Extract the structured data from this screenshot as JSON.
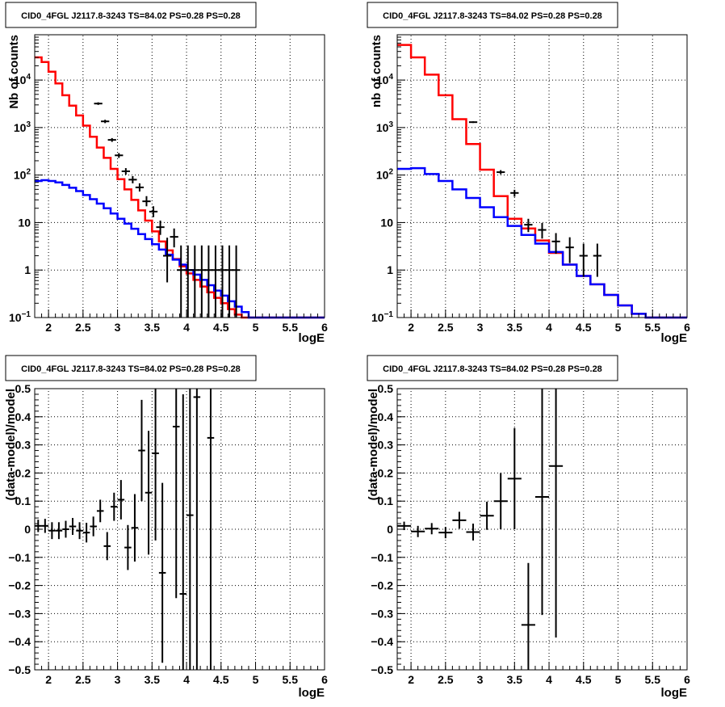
{
  "chart_data": [
    {
      "type": "line",
      "panel": "top-left",
      "title": "CID0_4FGL J2117.8-3243 TS=84.02 PS=0.28 PS=0.28",
      "xlabel": "logE",
      "ylabel": "Nb of counts",
      "yscale": "log",
      "xlim": [
        1.8,
        6.0
      ],
      "ylim": [
        0.1,
        90000
      ],
      "x_ticks": [
        "2",
        "2.5",
        "3",
        "3.5",
        "4",
        "4.5",
        "5",
        "5.5",
        "6"
      ],
      "y_ticks": [
        "10^-1",
        "1",
        "10",
        "10^2",
        "10^3",
        "10^4"
      ],
      "grid": true,
      "bin_edges": [
        1.8,
        1.9,
        2.0,
        2.1,
        2.2,
        2.3,
        2.4,
        2.5,
        2.6,
        2.7,
        2.8,
        2.9,
        3.0,
        3.1,
        3.2,
        3.3,
        3.4,
        3.5,
        3.6,
        3.7,
        3.8,
        3.9,
        4.0,
        4.1,
        4.2,
        4.3,
        4.4,
        4.5,
        4.6,
        4.7,
        4.8,
        4.9,
        5.0,
        5.1,
        5.2,
        5.3,
        5.4,
        5.5,
        5.6,
        5.7,
        5.8,
        5.9,
        6.0
      ],
      "series": [
        {
          "color": "#ff0000",
          "values": [
            30000,
            24000,
            15000,
            8500,
            4800,
            2900,
            1800,
            1100,
            640,
            380,
            230,
            135,
            82,
            50,
            30,
            18,
            11,
            6.5,
            4.0,
            2.6,
            1.7,
            1.2,
            0.85,
            0.62,
            0.45,
            0.34,
            0.26,
            0.2,
            0.15,
            0.115,
            0.1,
            0.1,
            0.1,
            0.1,
            0.1,
            0.1,
            0.1,
            0.1,
            0.1,
            0.1,
            0.1,
            0.1
          ]
        },
        {
          "color": "#0000ff",
          "values": [
            75,
            78,
            75,
            70,
            62,
            54,
            46,
            38,
            31,
            25,
            20,
            15.5,
            12,
            9.5,
            7.4,
            5.7,
            4.5,
            3.5,
            2.7,
            2.1,
            1.65,
            1.3,
            1.0,
            0.8,
            0.62,
            0.48,
            0.37,
            0.29,
            0.22,
            0.17,
            0.13,
            0.1,
            0.1,
            0.1,
            0.1,
            0.1,
            0.1,
            0.1,
            0.1,
            0.1,
            0.1,
            0.1
          ]
        }
      ],
      "points": [
        {
          "x": 2.72,
          "y": 3200,
          "lo": 3000,
          "hi": 3400
        },
        {
          "x": 2.82,
          "y": 1350,
          "lo": 1240,
          "hi": 1460
        },
        {
          "x": 2.92,
          "y": 550,
          "lo": 500,
          "hi": 600
        },
        {
          "x": 3.02,
          "y": 260,
          "lo": 230,
          "hi": 290
        },
        {
          "x": 3.12,
          "y": 120,
          "lo": 102,
          "hi": 140
        },
        {
          "x": 3.22,
          "y": 80,
          "lo": 67,
          "hi": 95
        },
        {
          "x": 3.32,
          "y": 55,
          "lo": 45,
          "hi": 67
        },
        {
          "x": 3.42,
          "y": 28,
          "lo": 22,
          "hi": 36
        },
        {
          "x": 3.52,
          "y": 17,
          "lo": 13,
          "hi": 22
        },
        {
          "x": 3.62,
          "y": 8,
          "lo": 5.5,
          "hi": 11
        },
        {
          "x": 3.72,
          "y": 2,
          "lo": 0.55,
          "hi": 4.8
        },
        {
          "x": 3.82,
          "y": 5,
          "lo": 3,
          "hi": 7.5
        },
        {
          "x": 3.92,
          "y": 1,
          "lo": 0.1,
          "hi": 3.3
        },
        {
          "x": 4.02,
          "y": 1,
          "lo": 0.1,
          "hi": 3.3
        },
        {
          "x": 4.12,
          "y": 1,
          "lo": 0.1,
          "hi": 3.3
        },
        {
          "x": 4.22,
          "y": 1,
          "lo": 0.1,
          "hi": 3.3
        },
        {
          "x": 4.32,
          "y": 1,
          "lo": 0.1,
          "hi": 3.3
        },
        {
          "x": 4.42,
          "y": 1,
          "lo": 0.1,
          "hi": 3.3
        },
        {
          "x": 4.52,
          "y": 1,
          "lo": 0.1,
          "hi": 3.3
        },
        {
          "x": 4.62,
          "y": 1,
          "lo": 0.1,
          "hi": 3.3
        },
        {
          "x": 4.72,
          "y": 1,
          "lo": 0.1,
          "hi": 3.3
        }
      ]
    },
    {
      "type": "line",
      "panel": "top-right",
      "title": "CID0_4FGL J2117.8-3243 TS=84.02 PS=0.28 PS=0.28",
      "xlabel": "logE",
      "ylabel": "nb of counts",
      "yscale": "log",
      "xlim": [
        1.8,
        6.0
      ],
      "ylim": [
        0.1,
        90000
      ],
      "x_ticks": [
        "2",
        "2.5",
        "3",
        "3.5",
        "4",
        "4.5",
        "5",
        "5.5",
        "6"
      ],
      "y_ticks": [
        "10^-1",
        "1",
        "10",
        "10^2",
        "10^3",
        "10^4"
      ],
      "grid": true,
      "bin_edges": [
        1.8,
        2.0,
        2.2,
        2.4,
        2.6,
        2.8,
        3.0,
        3.2,
        3.4,
        3.6,
        3.8,
        4.0,
        4.2,
        4.4,
        4.6,
        4.8,
        5.0,
        5.2,
        5.4,
        5.6,
        5.8,
        6.0
      ],
      "series": [
        {
          "color": "#ff0000",
          "values": [
            55000,
            30000,
            13000,
            4800,
            1500,
            450,
            130,
            36,
            12,
            7.5,
            4.2,
            2.3,
            1.3,
            0.75,
            0.5,
            0.3,
            0.18,
            0.12,
            0.1,
            0.1,
            0.1
          ]
        },
        {
          "color": "#0000ff",
          "values": [
            135,
            140,
            105,
            75,
            50,
            33,
            21,
            13,
            8.5,
            5.5,
            3.6,
            2.4,
            1.3,
            0.75,
            0.5,
            0.3,
            0.18,
            0.12,
            0.1,
            0.1,
            0.1
          ]
        }
      ],
      "points": [
        {
          "x": 2.9,
          "y": 1300,
          "lo": 1250,
          "hi": 1350
        },
        {
          "x": 3.3,
          "y": 115,
          "lo": 104,
          "hi": 127
        },
        {
          "x": 3.5,
          "y": 42,
          "lo": 35,
          "hi": 49
        },
        {
          "x": 3.7,
          "y": 9,
          "lo": 6.3,
          "hi": 12
        },
        {
          "x": 3.9,
          "y": 7,
          "lo": 4.6,
          "hi": 9.8
        },
        {
          "x": 4.1,
          "y": 4,
          "lo": 2.2,
          "hi": 6
        },
        {
          "x": 4.3,
          "y": 3,
          "lo": 1.4,
          "hi": 4.9
        },
        {
          "x": 4.5,
          "y": 2,
          "lo": 0.72,
          "hi": 3.6
        },
        {
          "x": 4.7,
          "y": 2,
          "lo": 0.72,
          "hi": 3.6
        }
      ]
    },
    {
      "type": "scatter",
      "panel": "bottom-left",
      "title": "CID0_4FGL J2117.8-3243 TS=84.02 PS=0.28 PS=0.28",
      "xlabel": "logE",
      "ylabel": "(data-model)/model",
      "xlim": [
        1.8,
        6.0
      ],
      "ylim": [
        -0.5,
        0.5
      ],
      "x_ticks": [
        "2",
        "2.5",
        "3",
        "3.5",
        "4",
        "4.5",
        "5",
        "5.5",
        "6"
      ],
      "y_ticks": [
        "-0.5",
        "-0.4",
        "-0.3",
        "-0.2",
        "-0.1",
        "0",
        "0.1",
        "0.2",
        "0.3",
        "0.4",
        "0.5"
      ],
      "grid": true,
      "xerr": 0.05,
      "points": [
        {
          "x": 1.85,
          "y": 0.012,
          "err": 0.022
        },
        {
          "x": 1.95,
          "y": 0.012,
          "err": 0.025
        },
        {
          "x": 2.05,
          "y": -0.005,
          "err": 0.03
        },
        {
          "x": 2.15,
          "y": -0.005,
          "err": 0.03
        },
        {
          "x": 2.25,
          "y": 0.0,
          "err": 0.03
        },
        {
          "x": 2.35,
          "y": 0.01,
          "err": 0.03
        },
        {
          "x": 2.45,
          "y": -0.005,
          "err": 0.03
        },
        {
          "x": 2.55,
          "y": -0.012,
          "err": 0.035
        },
        {
          "x": 2.65,
          "y": 0.01,
          "err": 0.035
        },
        {
          "x": 2.75,
          "y": 0.065,
          "err": 0.04
        },
        {
          "x": 2.85,
          "y": -0.06,
          "err": 0.05
        },
        {
          "x": 2.95,
          "y": 0.08,
          "err": 0.05
        },
        {
          "x": 3.05,
          "y": 0.105,
          "err": 0.07
        },
        {
          "x": 3.15,
          "y": -0.065,
          "err": 0.08
        },
        {
          "x": 3.25,
          "y": 0.005,
          "err": 0.12
        },
        {
          "x": 3.35,
          "y": 0.28,
          "err": 0.18
        },
        {
          "x": 3.45,
          "y": 0.13,
          "err": 0.22
        },
        {
          "x": 3.55,
          "y": 0.27,
          "err": 0.31
        },
        {
          "x": 3.65,
          "y": -0.155,
          "err": 0.32
        },
        {
          "x": 3.85,
          "y": 0.365,
          "err": 0.61
        },
        {
          "x": 3.95,
          "y": -0.23,
          "err": 0.71
        },
        {
          "x": 4.05,
          "y": 0.05,
          "err": 0.9
        },
        {
          "x": 4.15,
          "y": 0.47,
          "err": 1.0
        },
        {
          "x": 4.35,
          "y": 0.325,
          "err": 1.0
        }
      ]
    },
    {
      "type": "scatter",
      "panel": "bottom-right",
      "title": "CID0_4FGL J2117.8-3243 TS=84.02 PS=0.28 PS=0.28",
      "xlabel": "logE",
      "ylabel": "(data-model)/model",
      "xlim": [
        1.8,
        6.0
      ],
      "ylim": [
        -0.5,
        0.5
      ],
      "x_ticks": [
        "2",
        "2.5",
        "3",
        "3.5",
        "4",
        "4.5",
        "5",
        "5.5",
        "6"
      ],
      "y_ticks": [
        "-0.5",
        "-0.4",
        "-0.3",
        "-0.2",
        "-0.1",
        "0",
        "0.1",
        "0.2",
        "0.3",
        "0.4",
        "0.5"
      ],
      "grid": true,
      "xerr": 0.1,
      "points": [
        {
          "x": 1.9,
          "y": 0.012,
          "err": 0.015
        },
        {
          "x": 2.1,
          "y": -0.008,
          "err": 0.02
        },
        {
          "x": 2.3,
          "y": 0.002,
          "err": 0.02
        },
        {
          "x": 2.5,
          "y": -0.012,
          "err": 0.02
        },
        {
          "x": 2.7,
          "y": 0.032,
          "err": 0.03
        },
        {
          "x": 2.9,
          "y": -0.01,
          "err": 0.03
        },
        {
          "x": 3.1,
          "y": 0.048,
          "err": 0.05
        },
        {
          "x": 3.3,
          "y": 0.1,
          "err": 0.1
        },
        {
          "x": 3.5,
          "y": 0.18,
          "err": 0.18
        },
        {
          "x": 3.7,
          "y": -0.34,
          "err": 0.22
        },
        {
          "x": 3.9,
          "y": 0.115,
          "err": 0.42
        },
        {
          "x": 4.1,
          "y": 0.225,
          "err": 0.61
        }
      ]
    }
  ]
}
